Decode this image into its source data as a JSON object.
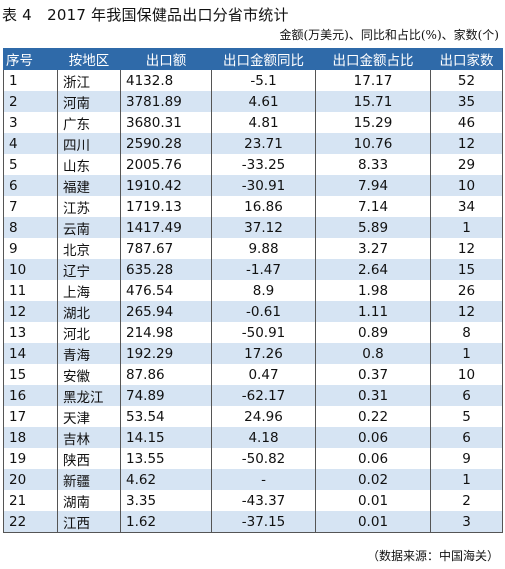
{
  "title": "表 4　2017 年我国保健品出口分省市统计",
  "unit_note": {
    "text": "金额(万美元)、同比和占比(%)、家数(个)"
  },
  "table": {
    "headers": [
      "序号",
      "按地区",
      "出口额",
      "出口金额同比",
      "出口金额占比",
      "出口家数"
    ],
    "rows": [
      [
        "1",
        "浙江",
        "4132.8",
        "-5.1",
        "17.17",
        "52"
      ],
      [
        "2",
        "河南",
        "3781.89",
        "4.61",
        "15.71",
        "35"
      ],
      [
        "3",
        "广东",
        "3680.31",
        "4.81",
        "15.29",
        "46"
      ],
      [
        "4",
        "四川",
        "2590.28",
        "23.71",
        "10.76",
        "12"
      ],
      [
        "5",
        "山东",
        "2005.76",
        "-33.25",
        "8.33",
        "29"
      ],
      [
        "6",
        "福建",
        "1910.42",
        "-30.91",
        "7.94",
        "10"
      ],
      [
        "7",
        "江苏",
        "1719.13",
        "16.86",
        "7.14",
        "34"
      ],
      [
        "8",
        "云南",
        "1417.49",
        "37.12",
        "5.89",
        "1"
      ],
      [
        "9",
        "北京",
        "787.67",
        "9.88",
        "3.27",
        "12"
      ],
      [
        "10",
        "辽宁",
        "635.28",
        "-1.47",
        "2.64",
        "15"
      ],
      [
        "11",
        "上海",
        "476.54",
        "8.9",
        "1.98",
        "26"
      ],
      [
        "12",
        "湖北",
        "265.94",
        "-0.61",
        "1.11",
        "12"
      ],
      [
        "13",
        "河北",
        "214.98",
        "-50.91",
        "0.89",
        "8"
      ],
      [
        "14",
        "青海",
        "192.29",
        "17.26",
        "0.8",
        "1"
      ],
      [
        "15",
        "安徽",
        "87.86",
        "0.47",
        "0.37",
        "10"
      ],
      [
        "16",
        "黑龙江",
        "74.89",
        "-62.17",
        "0.31",
        "6"
      ],
      [
        "17",
        "天津",
        "53.54",
        "24.96",
        "0.22",
        "5"
      ],
      [
        "18",
        "吉林",
        "14.15",
        "4.18",
        "0.06",
        "6"
      ],
      [
        "19",
        "陕西",
        "13.55",
        "-50.82",
        "0.06",
        "9"
      ],
      [
        "20",
        "新疆",
        "4.62",
        "-",
        "0.02",
        "1"
      ],
      [
        "21",
        "湖南",
        "3.35",
        "-43.37",
        "0.01",
        "2"
      ],
      [
        "22",
        "江西",
        "1.62",
        "-37.15",
        "0.01",
        "3"
      ]
    ]
  },
  "source": "（数据来源：中国海关）",
  "colors": {
    "header_bg": "#2f6aa9",
    "stripe_bg": "#d6e4f3"
  }
}
